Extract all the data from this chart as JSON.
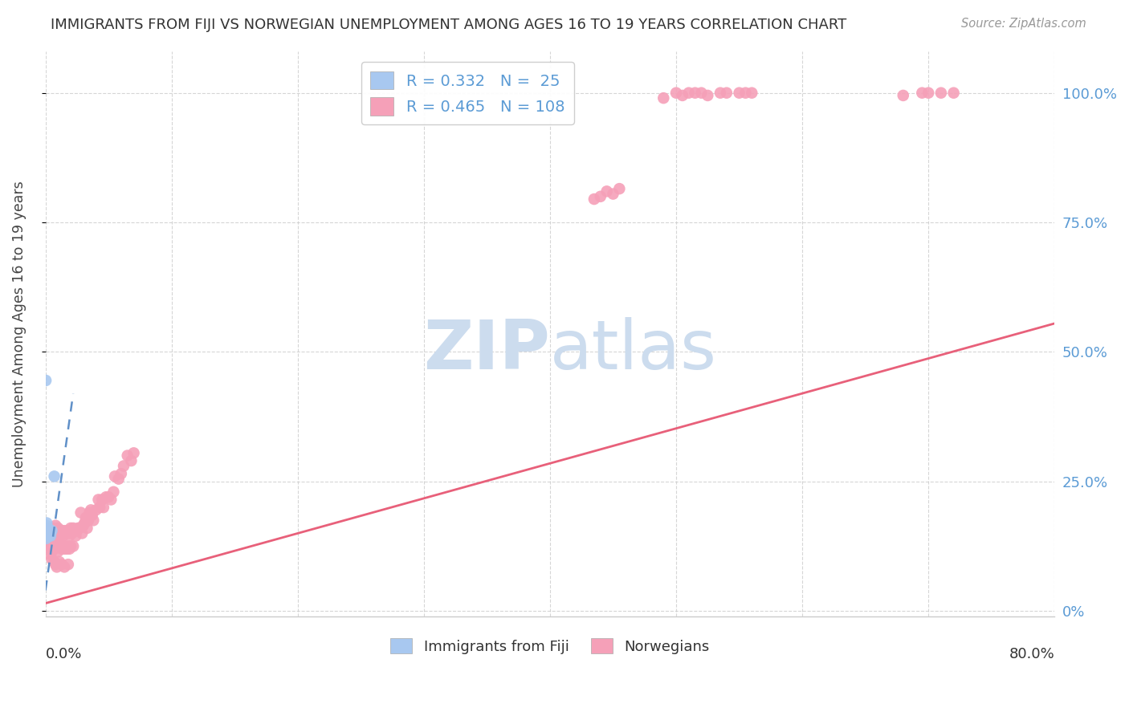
{
  "title": "IMMIGRANTS FROM FIJI VS NORWEGIAN UNEMPLOYMENT AMONG AGES 16 TO 19 YEARS CORRELATION CHART",
  "source": "Source: ZipAtlas.com",
  "ylabel": "Unemployment Among Ages 16 to 19 years",
  "right_yticks": [
    "0%",
    "25.0%",
    "50.0%",
    "75.0%",
    "100.0%"
  ],
  "right_ytick_vals": [
    0.0,
    0.25,
    0.5,
    0.75,
    1.0
  ],
  "legend_fiji_R": "0.332",
  "legend_fiji_N": "25",
  "legend_norw_R": "0.465",
  "legend_norw_N": "108",
  "legend_label_fiji": "Immigrants from Fiji",
  "legend_label_norw": "Norwegians",
  "fiji_color": "#a8c8f0",
  "norw_color": "#f5a0b8",
  "fiji_trend_color": "#6090c8",
  "norw_trend_color": "#e8607a",
  "watermark_color": "#ccdcee",
  "background_color": "#ffffff",
  "xlim": [
    0.0,
    0.8
  ],
  "ylim": [
    -0.01,
    1.08
  ],
  "norw_trend_x0": 0.0,
  "norw_trend_y0": 0.015,
  "norw_trend_x1": 0.8,
  "norw_trend_y1": 0.555,
  "fiji_trend_x0": 0.0,
  "fiji_trend_y0": 0.04,
  "fiji_trend_x1": 0.022,
  "fiji_trend_y1": 0.42,
  "fiji_scatter_x": [
    0.0001,
    0.0002,
    0.0003,
    0.0004,
    0.0005,
    0.0006,
    0.0007,
    0.0008,
    0.0009,
    0.001,
    0.0012,
    0.0013,
    0.0014,
    0.0015,
    0.0016,
    0.0018,
    0.002,
    0.0022,
    0.0025,
    0.003,
    0.0035,
    0.004,
    0.005,
    0.007,
    0.0003
  ],
  "fiji_scatter_y": [
    0.145,
    0.155,
    0.16,
    0.15,
    0.14,
    0.155,
    0.165,
    0.148,
    0.152,
    0.17,
    0.158,
    0.162,
    0.145,
    0.155,
    0.148,
    0.152,
    0.16,
    0.155,
    0.145,
    0.155,
    0.15,
    0.145,
    0.155,
    0.26,
    0.445
  ],
  "norw_scatter_x": [
    0.001,
    0.001,
    0.002,
    0.002,
    0.003,
    0.003,
    0.003,
    0.004,
    0.004,
    0.005,
    0.005,
    0.005,
    0.006,
    0.006,
    0.007,
    0.007,
    0.007,
    0.008,
    0.008,
    0.009,
    0.009,
    0.01,
    0.01,
    0.01,
    0.011,
    0.011,
    0.012,
    0.012,
    0.013,
    0.013,
    0.014,
    0.014,
    0.015,
    0.015,
    0.016,
    0.016,
    0.017,
    0.017,
    0.018,
    0.018,
    0.019,
    0.019,
    0.02,
    0.02,
    0.021,
    0.022,
    0.022,
    0.023,
    0.024,
    0.025,
    0.026,
    0.027,
    0.028,
    0.029,
    0.03,
    0.031,
    0.032,
    0.033,
    0.034,
    0.035,
    0.036,
    0.037,
    0.038,
    0.04,
    0.042,
    0.043,
    0.045,
    0.046,
    0.048,
    0.05,
    0.052,
    0.054,
    0.055,
    0.058,
    0.06,
    0.062,
    0.065,
    0.068,
    0.07,
    0.435,
    0.44,
    0.445,
    0.45,
    0.455,
    0.49,
    0.5,
    0.505,
    0.51,
    0.515,
    0.52,
    0.525,
    0.535,
    0.54,
    0.55,
    0.555,
    0.56,
    0.68,
    0.695,
    0.7,
    0.71,
    0.72,
    0.005,
    0.007,
    0.008,
    0.009,
    0.011,
    0.013,
    0.015,
    0.018
  ],
  "norw_scatter_y": [
    0.155,
    0.13,
    0.16,
    0.14,
    0.15,
    0.13,
    0.11,
    0.145,
    0.125,
    0.15,
    0.13,
    0.115,
    0.16,
    0.125,
    0.155,
    0.14,
    0.12,
    0.165,
    0.13,
    0.145,
    0.125,
    0.16,
    0.14,
    0.115,
    0.155,
    0.125,
    0.15,
    0.13,
    0.155,
    0.12,
    0.145,
    0.125,
    0.155,
    0.12,
    0.15,
    0.125,
    0.155,
    0.12,
    0.15,
    0.125,
    0.145,
    0.12,
    0.16,
    0.125,
    0.15,
    0.16,
    0.125,
    0.155,
    0.145,
    0.155,
    0.16,
    0.16,
    0.19,
    0.15,
    0.165,
    0.17,
    0.18,
    0.16,
    0.175,
    0.19,
    0.195,
    0.185,
    0.175,
    0.195,
    0.215,
    0.2,
    0.215,
    0.2,
    0.22,
    0.22,
    0.215,
    0.23,
    0.26,
    0.255,
    0.265,
    0.28,
    0.3,
    0.29,
    0.305,
    0.795,
    0.8,
    0.81,
    0.805,
    0.815,
    0.99,
    1.0,
    0.995,
    1.0,
    1.0,
    1.0,
    0.995,
    1.0,
    1.0,
    1.0,
    1.0,
    1.0,
    0.995,
    1.0,
    1.0,
    1.0,
    1.0,
    0.1,
    0.095,
    0.09,
    0.085,
    0.095,
    0.09,
    0.085,
    0.09
  ]
}
